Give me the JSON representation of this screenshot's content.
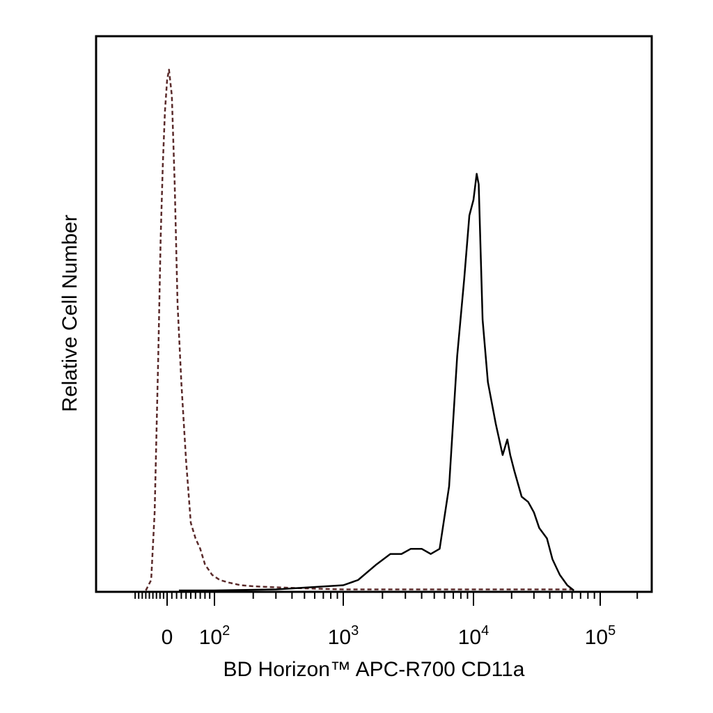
{
  "chart_data": {
    "type": "line",
    "title": "",
    "xlabel": "BD Horizon™ APC-R700 CD11a",
    "ylabel": "Relative Cell Number",
    "x_scale": "biexponential",
    "x_ticks": [
      {
        "value": 0,
        "base": "0",
        "exp": ""
      },
      {
        "value": 100,
        "base": "10",
        "exp": "2"
      },
      {
        "value": 1000,
        "base": "10",
        "exp": "3"
      },
      {
        "value": 10000,
        "base": "10",
        "exp": "4"
      },
      {
        "value": 100000,
        "base": "10",
        "exp": "5"
      }
    ],
    "y_ticks": [],
    "grid": false,
    "legend": "none",
    "colors": {
      "control": "#5a2a2a",
      "stained": "#000000"
    },
    "series": [
      {
        "style": "dashed",
        "x": [
          -60,
          -45,
          -35,
          -25,
          -18,
          -12,
          -6,
          0,
          4,
          10,
          16,
          22,
          30,
          40,
          50,
          60,
          70,
          80,
          95,
          110,
          130,
          160,
          200,
          300,
          500,
          1000,
          3000,
          10000,
          60000
        ],
        "y": [
          0.0,
          0.02,
          0.15,
          0.45,
          0.68,
          0.82,
          0.92,
          0.98,
          1.0,
          0.95,
          0.78,
          0.55,
          0.4,
          0.25,
          0.13,
          0.1,
          0.08,
          0.05,
          0.03,
          0.02,
          0.015,
          0.01,
          0.008,
          0.006,
          0.004,
          0.002,
          0.002,
          0.002,
          0.002
        ]
      },
      {
        "style": "solid",
        "x": [
          25,
          100,
          300,
          1000,
          1300,
          1800,
          2300,
          2800,
          3300,
          4000,
          4700,
          5500,
          6500,
          7500,
          8500,
          9300,
          10000,
          10600,
          11000,
          11800,
          13000,
          15000,
          17000,
          18500,
          19500,
          21000,
          24000,
          27000,
          30000,
          33000,
          38000,
          42000,
          48000,
          55000,
          62000
        ],
        "y": [
          0.0,
          0.0,
          0.002,
          0.01,
          0.02,
          0.05,
          0.07,
          0.07,
          0.08,
          0.08,
          0.07,
          0.08,
          0.2,
          0.45,
          0.6,
          0.72,
          0.75,
          0.8,
          0.78,
          0.52,
          0.4,
          0.32,
          0.26,
          0.29,
          0.26,
          0.23,
          0.18,
          0.17,
          0.15,
          0.12,
          0.1,
          0.06,
          0.03,
          0.01,
          0.0
        ]
      }
    ]
  }
}
